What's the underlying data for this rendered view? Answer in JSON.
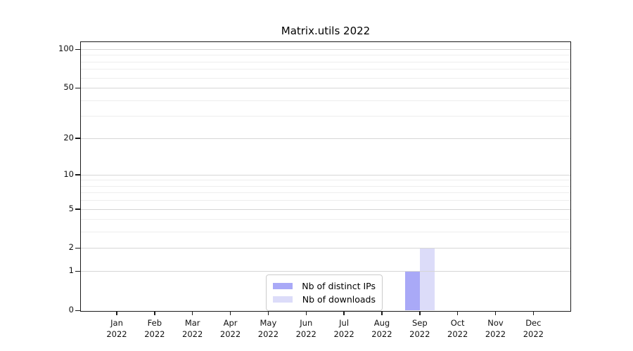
{
  "chart_data": {
    "type": "bar",
    "title": "Matrix.utils 2022",
    "x_axis": {
      "months": [
        "Jan",
        "Feb",
        "Mar",
        "Apr",
        "May",
        "Jun",
        "Jul",
        "Aug",
        "Sep",
        "Oct",
        "Nov",
        "Dec"
      ],
      "year": "2022"
    },
    "y_axis": {
      "scale": "symlog",
      "major_ticks": [
        0,
        1,
        2,
        5,
        10,
        20,
        50,
        100
      ],
      "minor_gridlines": [
        3,
        4,
        6,
        7,
        8,
        9,
        30,
        40,
        60,
        70,
        80,
        90
      ],
      "range": [
        0,
        100
      ]
    },
    "series": [
      {
        "name": "Nb of distinct IPs",
        "color": "#a9a9f7",
        "values": [
          0,
          0,
          0,
          0,
          0,
          0,
          0,
          0,
          1,
          0,
          0,
          0
        ]
      },
      {
        "name": "Nb of downloads",
        "color": "#dcdcf9",
        "values": [
          0,
          0,
          0,
          0,
          0,
          0,
          0,
          0,
          2,
          0,
          0,
          0
        ]
      }
    ],
    "legend": {
      "position": "lower-center",
      "entries": [
        {
          "label": "Nb of distinct IPs",
          "color": "#a9a9f7"
        },
        {
          "label": "Nb of downloads",
          "color": "#dcdcf9"
        }
      ]
    },
    "grid": {
      "horizontal": true,
      "vertical": false,
      "major_color": "#d6d6d6",
      "minor_color": "#eeeeee"
    }
  }
}
